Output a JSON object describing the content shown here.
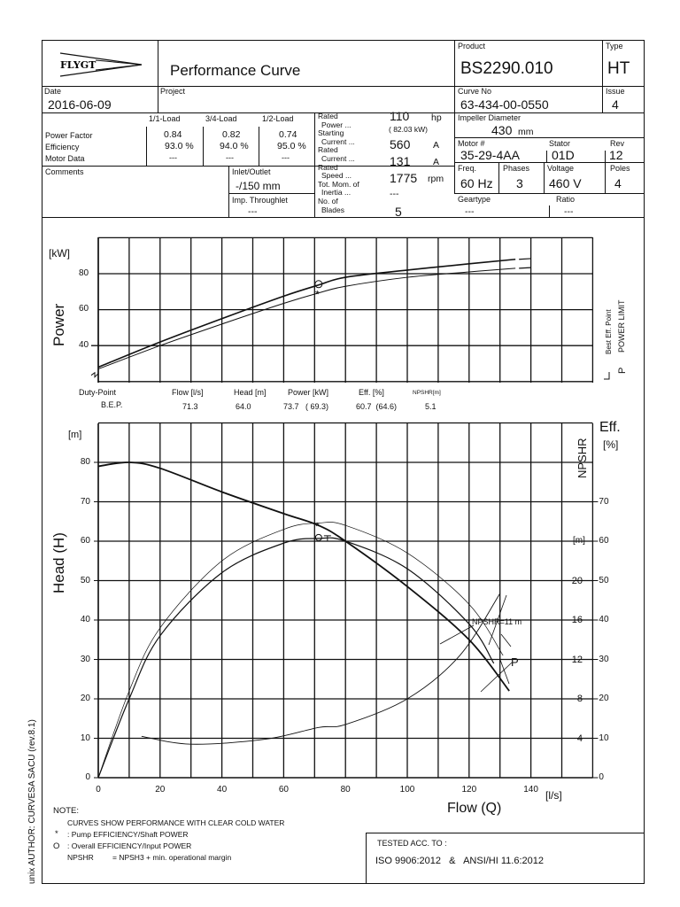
{
  "header": {
    "logo_text": "FLYGT",
    "title": "Performance Curve",
    "product_label": "Product",
    "product": "BS2290.010",
    "type_label": "Type",
    "type": "HT",
    "date_label": "Date",
    "date": "2016-06-09",
    "project_label": "Project",
    "curve_no_label": "Curve No",
    "curve_no": "63-434-00-0550",
    "issue_label": "Issue",
    "issue": "4",
    "impeller_label": "Impeller Diameter",
    "impeller_value": "430",
    "impeller_unit": "mm",
    "motor_label": "Motor #",
    "motor": "35-29-4AA",
    "stator_label": "Stator",
    "stator": "01D",
    "rev_label": "Rev",
    "rev": "12",
    "freq_label": "Freq.",
    "freq": "60 Hz",
    "phases_label": "Phases",
    "phases": "3",
    "voltage_label": "Voltage",
    "voltage": "460 V",
    "poles_label": "Poles",
    "poles": "4",
    "geartype_label": "Geartype",
    "geartype": "---",
    "ratio_label": "Ratio",
    "ratio": "---"
  },
  "load_table": {
    "columns": [
      "1/1-Load",
      "3/4-Load",
      "1/2-Load"
    ],
    "rows": [
      {
        "label": "Power Factor",
        "values": [
          "0.84",
          "0.82",
          "0.74"
        ]
      },
      {
        "label": "Efficiency",
        "values": [
          "93.0 %",
          "94.0 %",
          "95.0 %"
        ]
      },
      {
        "label": "Motor Data",
        "values": [
          "---",
          "---",
          "---"
        ]
      }
    ]
  },
  "rated": {
    "power_label1": "Rated",
    "power_label2": "Power ...",
    "power_value": "110",
    "power_unit": "hp",
    "power_kw": "( 82.03 kW)",
    "start_label1": "Starting",
    "start_label2": "Current ...",
    "start_value": "560",
    "start_unit": "A",
    "current_label1": "Rated",
    "current_label2": "Current ...",
    "current_value": "131",
    "current_unit": "A",
    "speed_label1": "Rated",
    "speed_label2": "Speed ...",
    "speed_value": "1775",
    "speed_unit": "rpm",
    "inertia_label1": "Tot. Mom. of",
    "inertia_label2": "Inertia ...",
    "inertia_value": "---",
    "blades_label1": "No. of",
    "blades_label2": "Blades",
    "blades_value": "5"
  },
  "comments_label": "Comments",
  "inlet_label": "Inlet/Outlet",
  "inlet_value": "-/150 mm",
  "throughlet_label": "Imp. Throughlet",
  "throughlet_value": "---",
  "duty_point": {
    "headers": [
      "Duty-Point",
      "Flow [l/s]",
      "Head [m]",
      "Power [kW]",
      "Eff. [%]",
      "NPSHR[m]"
    ],
    "row_label": "B.E.P.",
    "flow": "71.3",
    "head": "64.0",
    "power": "73.7   ( 69.3)",
    "eff": "60.7  (64.6)",
    "npshr": "5.1"
  },
  "legend": {
    "bep": "Best Eff. Point",
    "power_limit": "POWER LIMIT",
    "power_limit_symbol": "P",
    "npshr_annotation": "NPSHR=11 m"
  },
  "notes": {
    "title": "NOTE:",
    "line1": "CURVES SHOW PERFORMANCE WITH CLEAR COLD WATER",
    "star_symbol": "*",
    "star_text": ": Pump EFFICIENCY/Shaft POWER",
    "o_symbol": "O",
    "o_text": ": Overall EFFICIENCY/Input POWER",
    "npshr_key": "NPSHR",
    "npshr_text": "= NPSH3 + min. operational margin"
  },
  "tested": {
    "label": "TESTED ACC. TO :",
    "standard": "ISO 9906:2012   &   ANSI/HI 11.6:2012"
  },
  "side_text": "unix AUTHOR: CURVESA  SACU (rev.8.1)",
  "chart_data": [
    {
      "type": "line",
      "title": "Power",
      "ylabel": "Power",
      "yunit": "[kW]",
      "xlim": [
        0,
        160
      ],
      "ylim": [
        20,
        100
      ],
      "yticks": [
        "40",
        "60",
        "80"
      ],
      "grid": true,
      "series": [
        {
          "name": "Input POWER (O)",
          "x": [
            0,
            20,
            40,
            60,
            71.3,
            80,
            100,
            120,
            135
          ],
          "y": [
            28,
            42,
            55,
            67.5,
            73.7,
            78,
            82,
            85.5,
            88
          ]
        },
        {
          "name": "Shaft POWER (*)",
          "x": [
            0,
            20,
            40,
            60,
            71.3,
            80,
            100,
            120,
            135
          ],
          "y": [
            27,
            40,
            52,
            63.5,
            69.3,
            73,
            78,
            81,
            83
          ]
        }
      ]
    },
    {
      "type": "line",
      "title": "Head / Efficiency / NPSHR",
      "xlabel": "Flow (Q)",
      "xunit": "[l/s]",
      "ylabel": "Head (H)",
      "yunit": "[m]",
      "y2label": "Eff.",
      "y2unit": "[%]",
      "y3label": "NPSHR",
      "y3unit": "[m]",
      "xlim": [
        0,
        160
      ],
      "ylim": [
        0,
        90
      ],
      "xticks": [
        "0",
        "20",
        "40",
        "60",
        "80",
        "100",
        "120",
        "140"
      ],
      "yticks": [
        "0",
        "10",
        "20",
        "30",
        "40",
        "50",
        "60",
        "70",
        "80"
      ],
      "y2ticks": [
        "0",
        "10",
        "20",
        "30",
        "40",
        "50",
        "60",
        "70"
      ],
      "y3ticks": [
        "4",
        "8",
        "12",
        "16",
        "20"
      ],
      "grid": true,
      "series": [
        {
          "name": "Head",
          "x": [
            0,
            10,
            20,
            40,
            60,
            71.3,
            80,
            100,
            120,
            133
          ],
          "y": [
            79,
            80,
            78.5,
            72.5,
            67,
            64,
            60,
            48.5,
            35,
            22
          ]
        },
        {
          "name": "Pump EFFICIENCY (*)",
          "x": [
            0,
            10,
            20,
            40,
            60,
            71.3,
            80,
            100,
            120,
            131
          ],
          "y": [
            0,
            22,
            38,
            55,
            63,
            64.6,
            64,
            57,
            44,
            31
          ]
        },
        {
          "name": "Overall EFFICIENCY (O)",
          "x": [
            0,
            10,
            20,
            40,
            60,
            71.3,
            80,
            100,
            120,
            128
          ],
          "y": [
            0,
            20,
            36,
            52,
            59.5,
            60.7,
            60,
            53,
            39,
            29
          ]
        },
        {
          "name": "NPSHR [m]",
          "x": [
            14,
            30,
            54,
            71.3,
            80,
            100,
            117,
            130
          ],
          "y": [
            4.2,
            3.4,
            3.9,
            5.1,
            5.4,
            8,
            12.4,
            18.7
          ]
        }
      ],
      "bep": {
        "flow": 71.3,
        "head": 64.0
      }
    }
  ]
}
